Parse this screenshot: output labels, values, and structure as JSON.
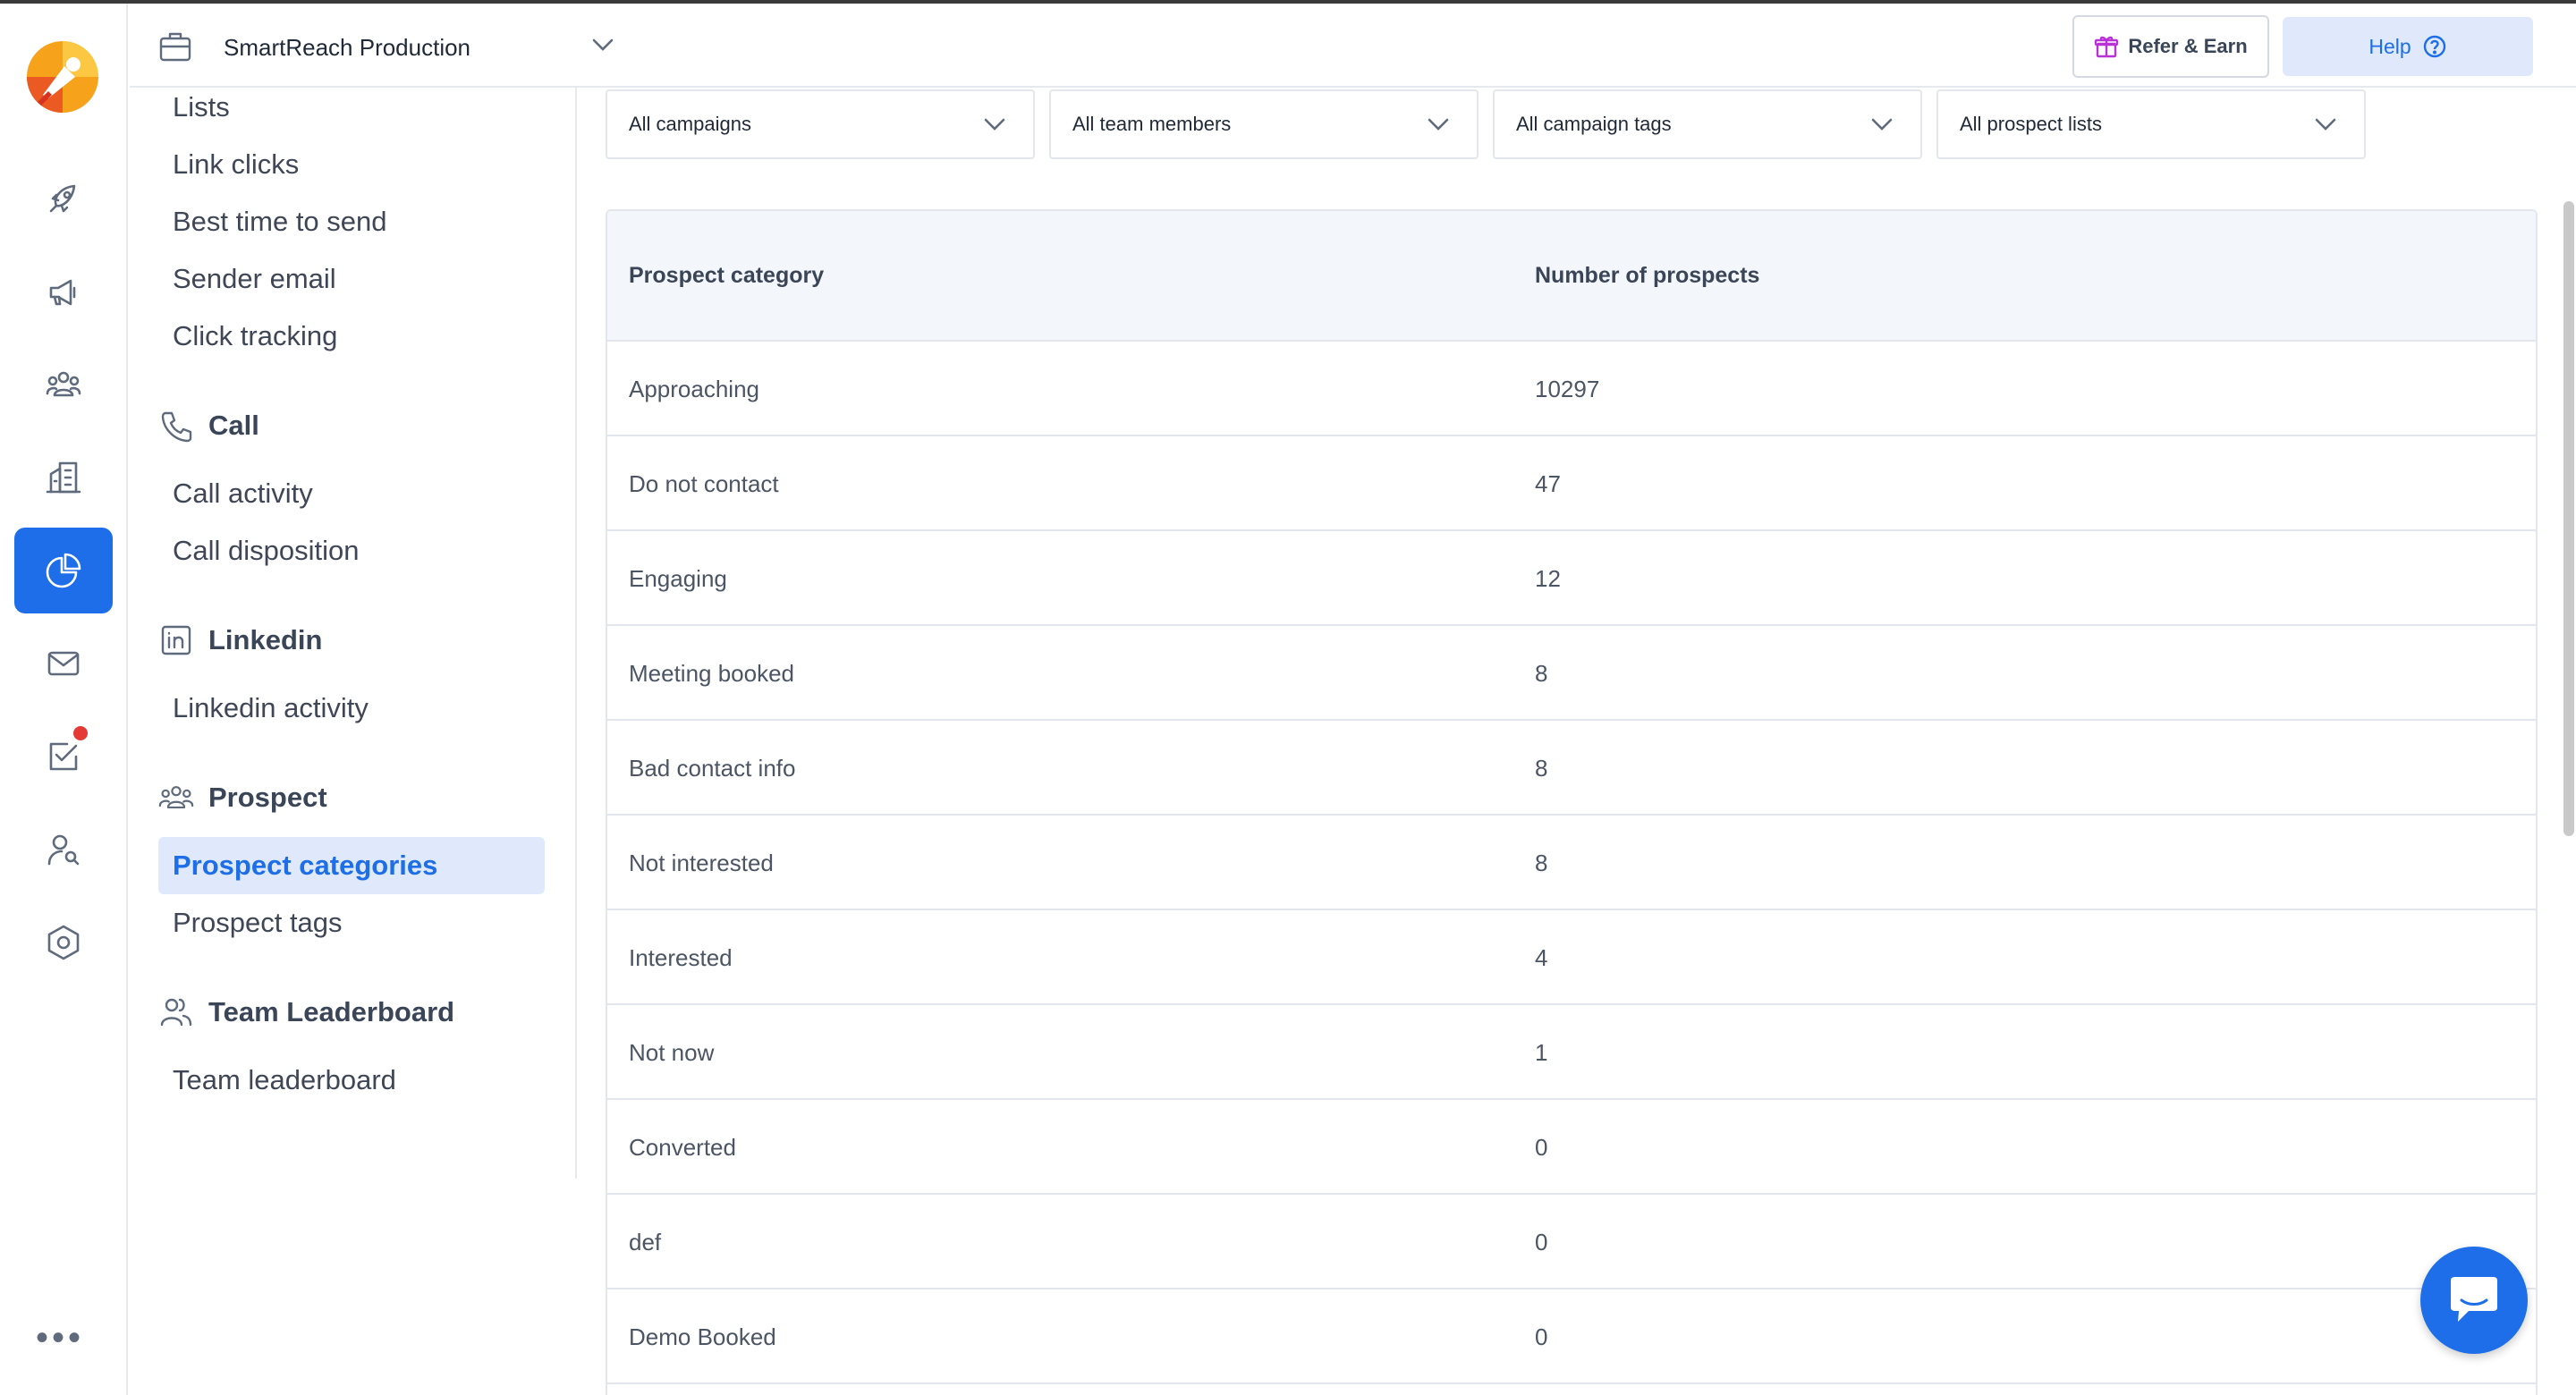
{
  "header": {
    "workspace_name": "SmartReach Production",
    "refer_label": "Refer & Earn",
    "help_label": "Help"
  },
  "rail": {
    "icons": [
      "rocket-icon",
      "megaphone-icon",
      "users-icon",
      "building-icon",
      "pie-chart-icon",
      "mail-icon",
      "task-check-icon",
      "user-search-icon",
      "settings-hexagon-icon"
    ],
    "active": "pie-chart-icon",
    "more_label": "•••"
  },
  "subnav": {
    "email_items": [
      "Lists",
      "Link clicks",
      "Best time to send",
      "Sender email",
      "Click tracking"
    ],
    "call_heading": "Call",
    "call_items": [
      "Call activity",
      "Call disposition"
    ],
    "linkedin_heading": "Linkedin",
    "linkedin_items": [
      "Linkedin activity"
    ],
    "prospect_heading": "Prospect",
    "prospect_items": [
      "Prospect categories",
      "Prospect tags"
    ],
    "leaderboard_heading": "Team Leaderboard",
    "leaderboard_items": [
      "Team leaderboard"
    ],
    "active_item": "Prospect categories"
  },
  "filters": [
    "All campaigns",
    "All team members",
    "All campaign tags",
    "All prospect lists"
  ],
  "table": {
    "columns": [
      "Prospect category",
      "Number of prospects"
    ],
    "rows": [
      [
        "Approaching",
        "10297"
      ],
      [
        "Do not contact",
        "47"
      ],
      [
        "Engaging",
        "12"
      ],
      [
        "Meeting booked",
        "8"
      ],
      [
        "Bad contact info",
        "8"
      ],
      [
        "Not interested",
        "8"
      ],
      [
        "Interested",
        "4"
      ],
      [
        "Not now",
        "1"
      ],
      [
        "Converted",
        "0"
      ],
      [
        "def",
        "0"
      ],
      [
        "Demo Booked",
        "0"
      ]
    ]
  },
  "colors": {
    "accent": "#1d6ee8",
    "active_bg": "#dfe9fb",
    "border": "#e3e7ed",
    "header_bg": "#f3f6fa"
  }
}
